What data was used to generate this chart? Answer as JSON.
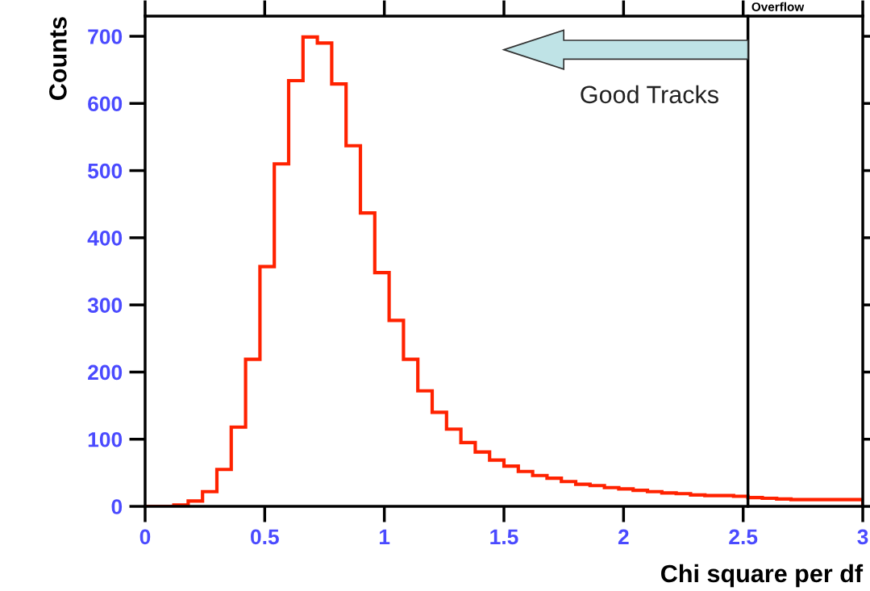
{
  "chart_data": {
    "type": "histogram",
    "xlabel": "Chi square per df",
    "ylabel": "Counts",
    "bins": [
      0,
      0.06,
      0.12,
      0.18,
      0.24,
      0.3,
      0.36,
      0.42,
      0.48,
      0.54,
      0.6,
      0.66,
      0.72,
      0.78,
      0.84,
      0.9,
      0.96,
      1.02,
      1.08,
      1.14,
      1.2,
      1.26,
      1.32,
      1.38,
      1.44,
      1.5,
      1.56,
      1.62,
      1.68,
      1.74,
      1.8,
      1.86,
      1.92,
      1.98,
      2.04,
      2.1,
      2.16,
      2.22,
      2.28,
      2.34,
      2.4,
      2.46,
      2.52,
      2.58,
      2.64,
      2.7,
      2.76,
      2.82,
      2.88,
      2.94,
      3
    ],
    "values": [
      0,
      0,
      2,
      8,
      22,
      55,
      118,
      219,
      357,
      510,
      634,
      699,
      690,
      629,
      537,
      437,
      348,
      277,
      219,
      172,
      140,
      115,
      95,
      81,
      69,
      60,
      52,
      46,
      42,
      37,
      33,
      31,
      28,
      26,
      24,
      22,
      20,
      19,
      17,
      16,
      16,
      15,
      13,
      12,
      11,
      10,
      10,
      10,
      10,
      10
    ],
    "color": "#ff2200",
    "xlim": [
      0,
      3
    ],
    "xticks": [
      0,
      0.5,
      1,
      1.5,
      2,
      2.5,
      3
    ],
    "ylim": [
      0,
      730
    ],
    "yticks": [
      0,
      100,
      200,
      300,
      400,
      500,
      600,
      700
    ],
    "grid": false,
    "ref_lines": [
      {
        "axis": "x",
        "value": 2.52,
        "label": "Overflow",
        "color": "#000000"
      }
    ],
    "annotations": [
      {
        "text": "Good Tracks",
        "x": 2.52,
        "y": 680
      }
    ]
  }
}
